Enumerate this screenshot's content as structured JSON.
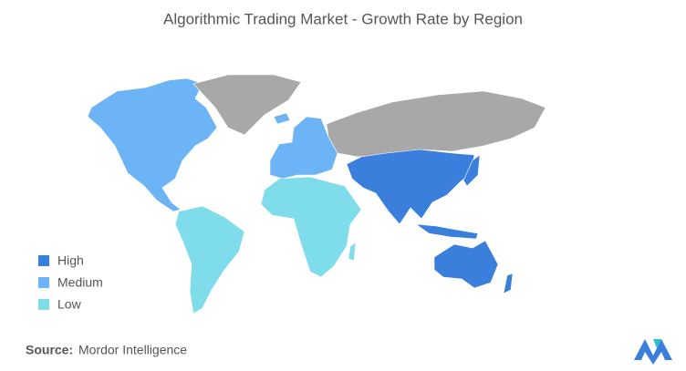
{
  "title": "Algorithmic Trading Market - Growth Rate by Region",
  "legend": [
    {
      "label": "High",
      "color": "#3b7fdc"
    },
    {
      "label": "Medium",
      "color": "#6db4f6"
    },
    {
      "label": "Low",
      "color": "#7fdcea"
    }
  ],
  "source": {
    "label": "Source:",
    "text": "Mordor Intelligence"
  }
}
